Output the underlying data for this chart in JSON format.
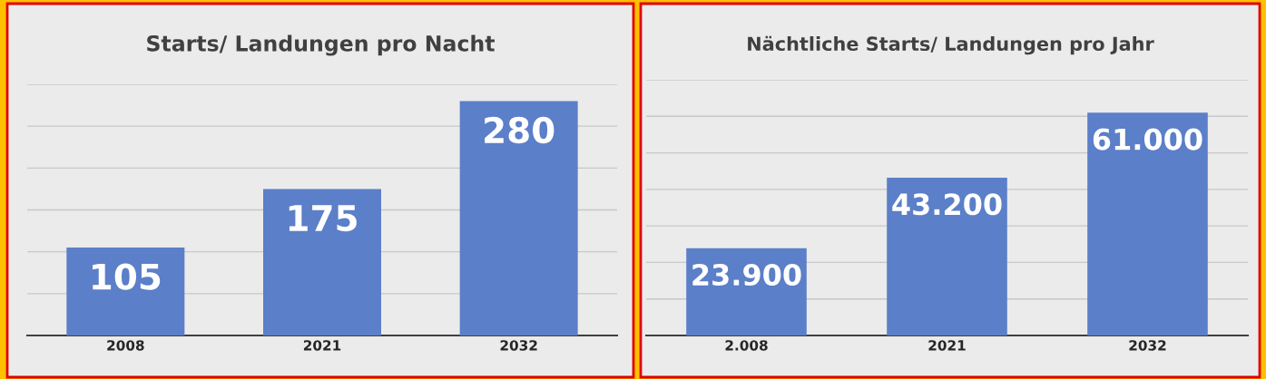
{
  "chart_data": [
    {
      "type": "bar",
      "title": "Starts/ Landungen pro Nacht",
      "categories": [
        "2008",
        "2021",
        "2032"
      ],
      "values": [
        105,
        175,
        280
      ],
      "color": "#5b7fc8",
      "data_labels": true,
      "ylim": [
        0,
        300
      ],
      "yticks": [
        {
          "value": 0,
          "label": null
        },
        {
          "value": 50,
          "label": null
        },
        {
          "value": 100,
          "label": null
        },
        {
          "value": 150,
          "label": null
        },
        {
          "value": 200,
          "label": null
        },
        {
          "value": 250,
          "label": null
        },
        {
          "value": 300,
          "label": null
        }
      ],
      "grid": "y",
      "tick_labels": "x"
    },
    {
      "type": "bar",
      "title": "Nächtliche Starts/ Landungen pro Jahr",
      "categories": [
        "2.008",
        "2021",
        "2032"
      ],
      "values": [
        23900,
        43200,
        61000
      ],
      "value_labels": [
        "23.900",
        "43.200",
        "61.000"
      ],
      "color": "#5b7fc8",
      "ylim": [
        0,
        70000
      ],
      "yticks": [
        {
          "value": 0,
          "label": null
        },
        {
          "value": 10000,
          "label": null
        },
        {
          "value": 20000,
          "label": null
        },
        {
          "value": 30000,
          "label": null
        },
        {
          "value": 40000,
          "label": null
        },
        {
          "value": 50000,
          "label": null
        },
        {
          "value": 60000,
          "label": null
        },
        {
          "value": 70000,
          "label": null
        }
      ],
      "grid": "y",
      "tick_labels": "x"
    }
  ]
}
